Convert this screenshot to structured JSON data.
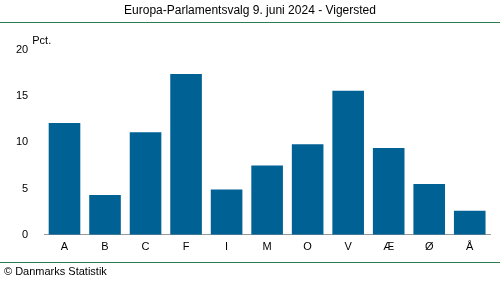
{
  "chart_data": {
    "type": "bar",
    "title": "Europa-Parlamentsvalg 9. juni 2024 - Vigersted",
    "y_label": "Pct.",
    "source": "© Danmarks Statistik",
    "categories": [
      "A",
      "B",
      "C",
      "F",
      "I",
      "M",
      "O",
      "V",
      "Æ",
      "Ø",
      "Å"
    ],
    "values": [
      12.1,
      4.3,
      11.1,
      17.4,
      4.9,
      7.5,
      9.8,
      15.6,
      9.4,
      5.5,
      2.6
    ],
    "color": "#006195",
    "ylim": [
      0,
      20
    ],
    "yticks": [
      0,
      5,
      10,
      15,
      20
    ],
    "grid": false
  }
}
